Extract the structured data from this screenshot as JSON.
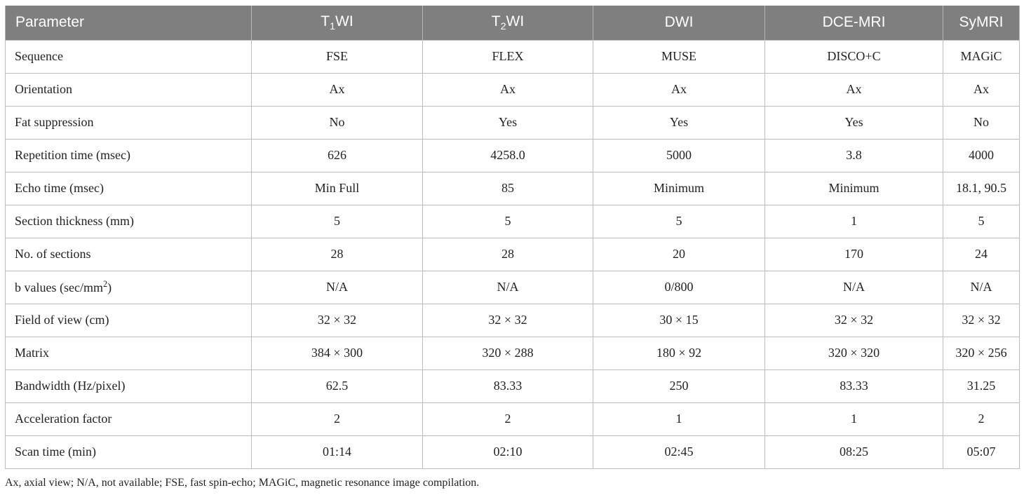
{
  "header": {
    "parameter": "Parameter",
    "t1wi": {
      "main": "T",
      "sub": "1",
      "tail": "WI"
    },
    "t2wi": {
      "main": "T",
      "sub": "2",
      "tail": "WI"
    },
    "dwi": "DWI",
    "dce": "DCE-MRI",
    "symri": "SyMRI"
  },
  "rows": [
    {
      "label": "Sequence",
      "values": [
        "FSE",
        "FLEX",
        "MUSE",
        "DISCO+C",
        "MAGiC"
      ]
    },
    {
      "label": "Orientation",
      "values": [
        "Ax",
        "Ax",
        "Ax",
        "Ax",
        "Ax"
      ]
    },
    {
      "label": "Fat suppression",
      "values": [
        "No",
        "Yes",
        "Yes",
        "Yes",
        "No"
      ]
    },
    {
      "label": "Repetition time (msec)",
      "values": [
        "626",
        "4258.0",
        "5000",
        "3.8",
        "4000"
      ]
    },
    {
      "label": "Echo time (msec)",
      "values": [
        "Min Full",
        "85",
        "Minimum",
        "Minimum",
        "18.1, 90.5"
      ]
    },
    {
      "label": "Section thickness (mm)",
      "values": [
        "5",
        "5",
        "5",
        "1",
        "5"
      ]
    },
    {
      "label": "No. of sections",
      "values": [
        "28",
        "28",
        "20",
        "170",
        "24"
      ]
    },
    {
      "label_main": "b values (sec/mm",
      "label_sup": "2",
      "label_tail": ")",
      "values": [
        "N/A",
        "N/A",
        "0/800",
        "N/A",
        "N/A"
      ]
    },
    {
      "label": "Field of view (cm)",
      "values": [
        "32 × 32",
        "32 × 32",
        "30 × 15",
        "32 × 32",
        "32 × 32"
      ]
    },
    {
      "label": "Matrix",
      "values": [
        "384 × 300",
        "320 × 288",
        "180 × 92",
        "320 × 320",
        "320 × 256"
      ]
    },
    {
      "label": "Bandwidth (Hz/pixel)",
      "values": [
        "62.5",
        "83.33",
        "250",
        "83.33",
        "31.25"
      ]
    },
    {
      "label": "Acceleration factor",
      "values": [
        "2",
        "2",
        "1",
        "1",
        "2"
      ]
    },
    {
      "label": "Scan time (min)",
      "values": [
        "01:14",
        "02:10",
        "02:45",
        "08:25",
        "05:07"
      ]
    }
  ],
  "footnote": "Ax, axial view; N/A, not available; FSE, fast spin-echo; MAGiC, magnetic resonance image compilation."
}
